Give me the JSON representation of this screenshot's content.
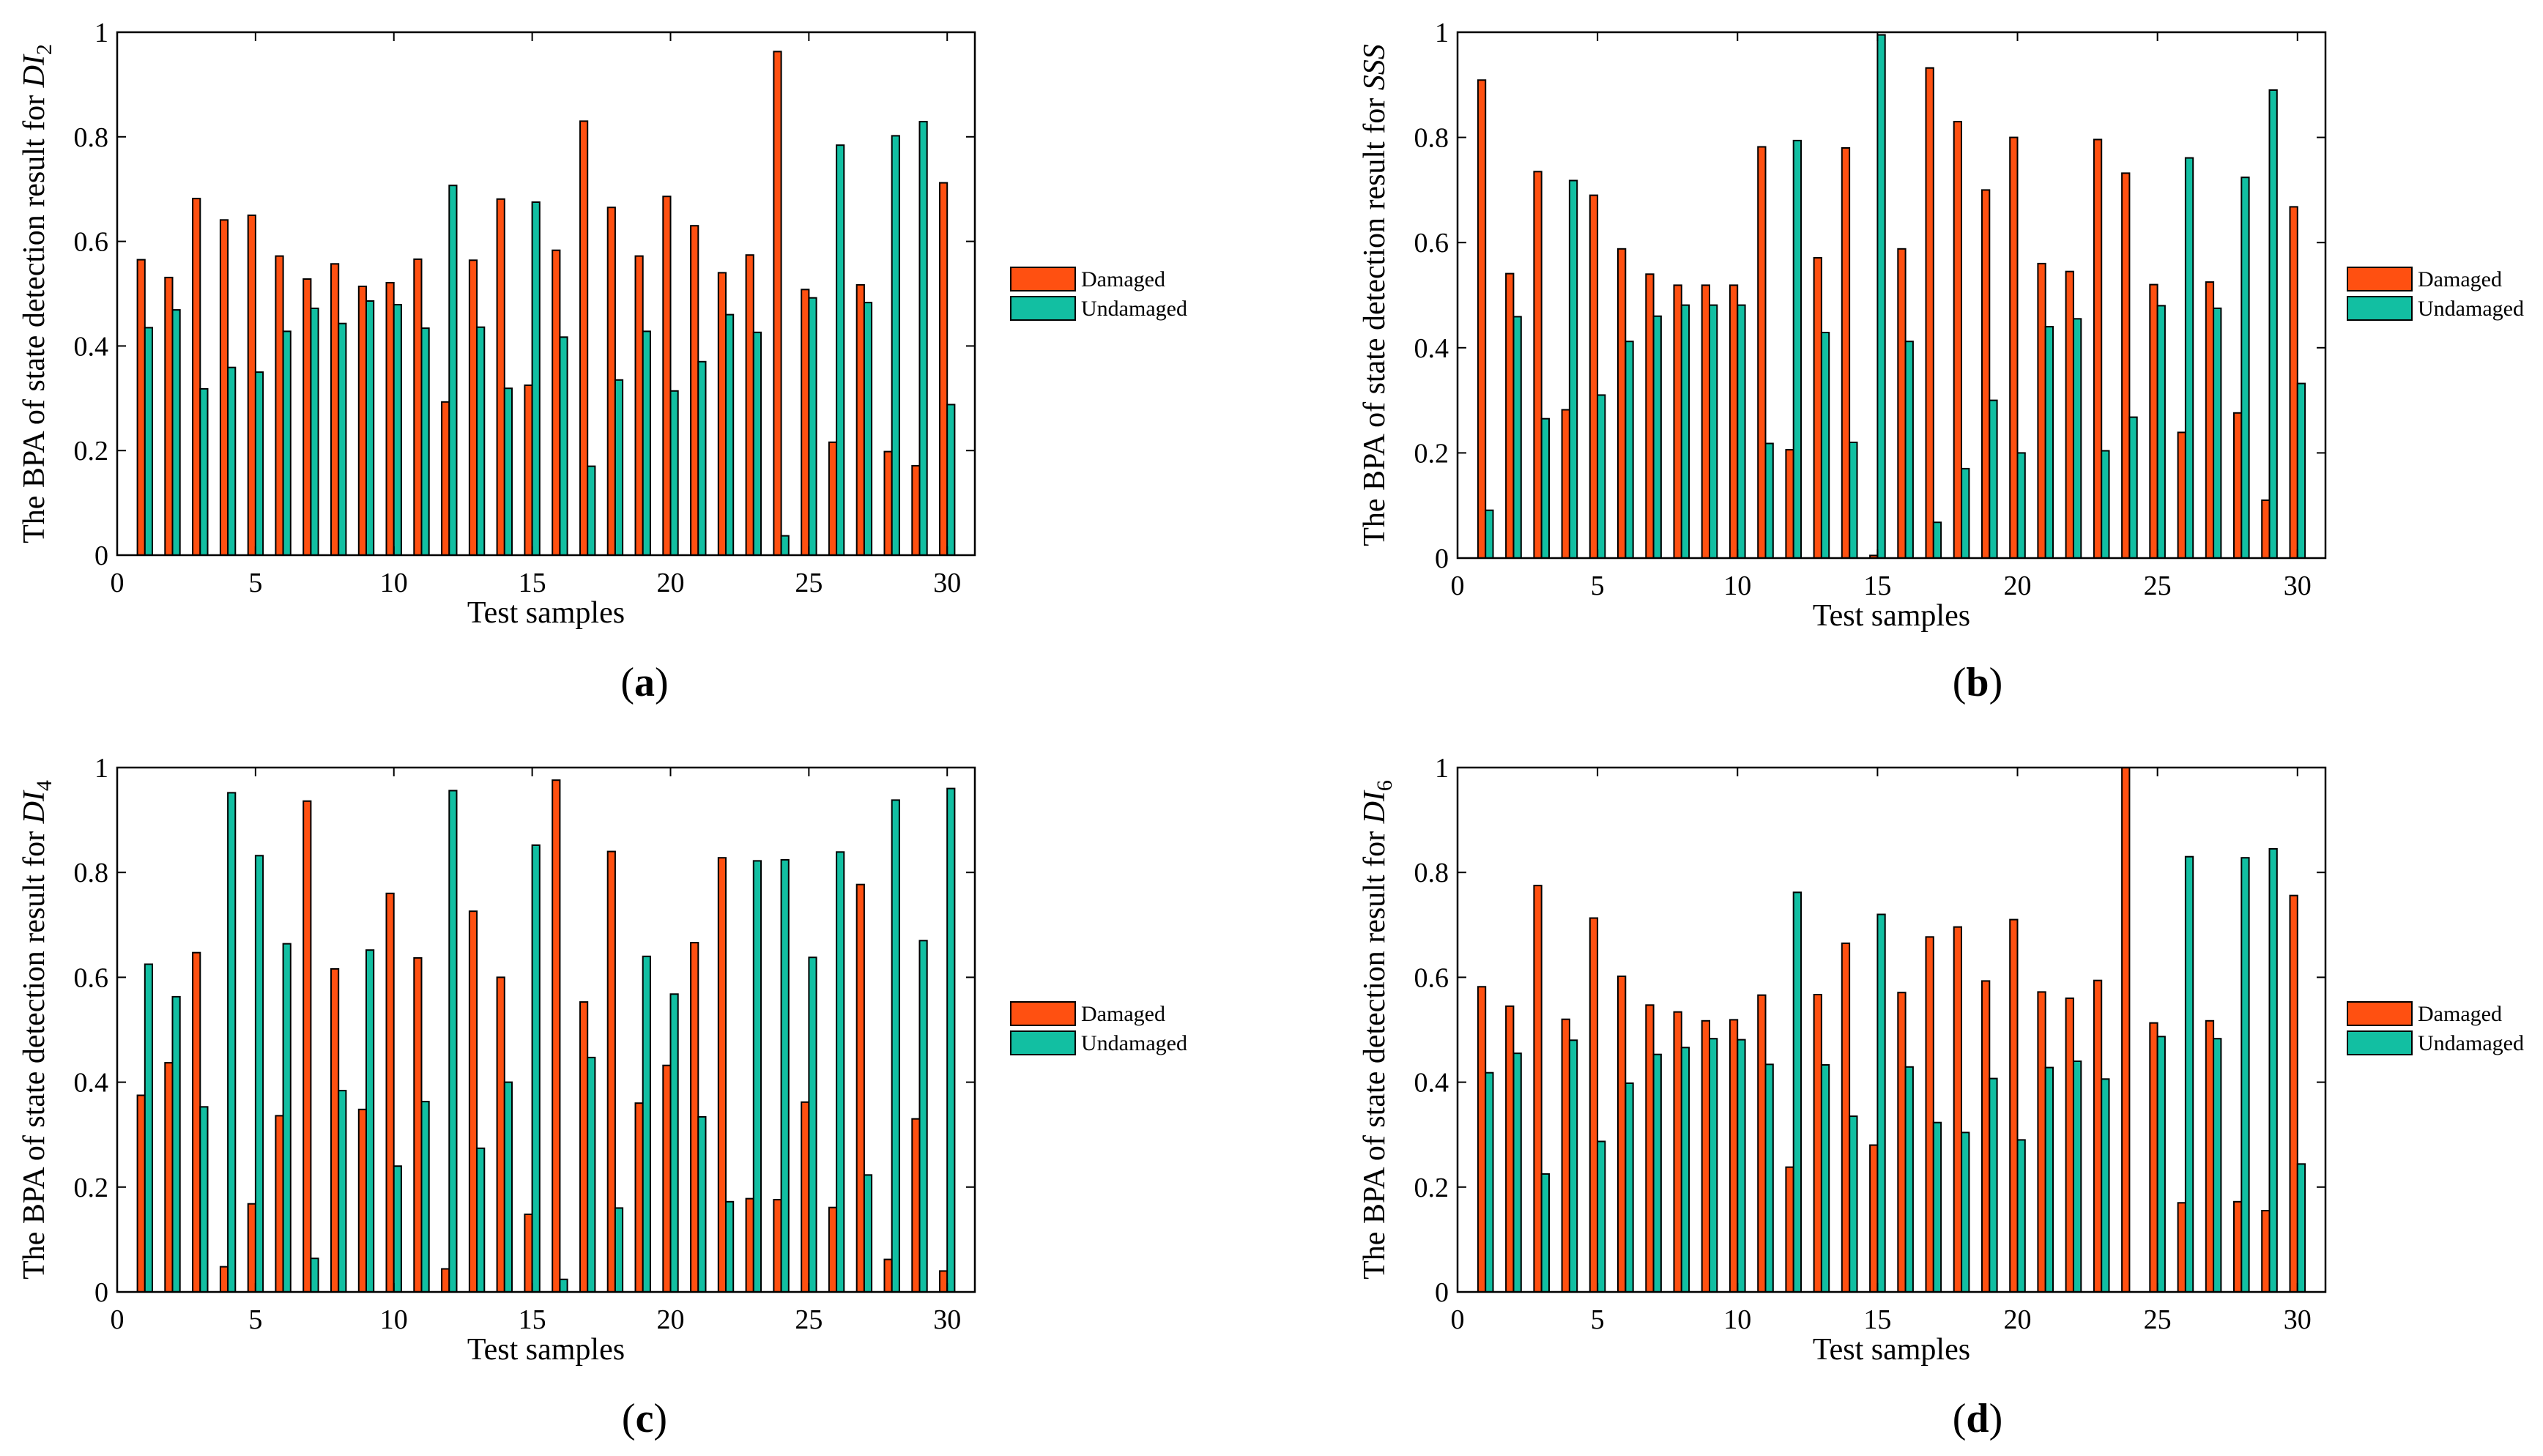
{
  "colors": {
    "damaged": "#FF5011",
    "undamaged": "#12BFA2",
    "edge": "#000000"
  },
  "chart_data": [
    {
      "type": "bar",
      "panel": "(a)",
      "caption_letter": "a",
      "ylabel_prefix": "The BPA of state detection result for ",
      "ylabel_var": "DI",
      "ylabel_sub": "2",
      "xlabel": "Test samples",
      "x_ticks": [
        "0",
        "5",
        "10",
        "15",
        "20",
        "25",
        "30"
      ],
      "y_ticks": [
        "0",
        "0.2",
        "0.4",
        "0.6",
        "0.8",
        "1"
      ],
      "xlim": [
        0,
        31
      ],
      "ylim": [
        0,
        1
      ],
      "legend": [
        "Damaged",
        "Undamaged"
      ],
      "categories": [
        1,
        2,
        3,
        4,
        5,
        6,
        7,
        8,
        9,
        10,
        11,
        12,
        13,
        14,
        15,
        16,
        17,
        18,
        19,
        20,
        21,
        22,
        23,
        24,
        25,
        26,
        27,
        28,
        29,
        30
      ],
      "series": [
        {
          "name": "Damaged",
          "values": [
            0.565,
            0.531,
            0.682,
            0.641,
            0.65,
            0.572,
            0.528,
            0.557,
            0.514,
            0.521,
            0.566,
            0.293,
            0.564,
            0.681,
            0.325,
            0.583,
            0.83,
            0.665,
            0.572,
            0.686,
            0.63,
            0.54,
            0.574,
            0.963,
            0.508,
            0.216,
            0.517,
            0.198,
            0.171,
            0.712
          ]
        },
        {
          "name": "Undamaged",
          "values": [
            0.435,
            0.469,
            0.318,
            0.359,
            0.35,
            0.428,
            0.472,
            0.443,
            0.486,
            0.479,
            0.434,
            0.707,
            0.436,
            0.319,
            0.675,
            0.417,
            0.17,
            0.335,
            0.428,
            0.314,
            0.37,
            0.46,
            0.426,
            0.037,
            0.492,
            0.784,
            0.483,
            0.802,
            0.829,
            0.288
          ]
        }
      ]
    },
    {
      "type": "bar",
      "panel": "(b)",
      "caption_letter": "b",
      "ylabel_prefix": "The BPA of state detection result for ",
      "ylabel_var": "SSS",
      "ylabel_sub": "",
      "xlabel": "Test samples",
      "x_ticks": [
        "0",
        "5",
        "10",
        "15",
        "20",
        "25",
        "30"
      ],
      "y_ticks": [
        "0",
        "0.2",
        "0.4",
        "0.6",
        "0.8",
        "1"
      ],
      "xlim": [
        0,
        31
      ],
      "ylim": [
        0,
        1
      ],
      "legend": [
        "Damaged",
        "Undamaged"
      ],
      "categories": [
        1,
        2,
        3,
        4,
        5,
        6,
        7,
        8,
        9,
        10,
        11,
        12,
        13,
        14,
        15,
        16,
        17,
        18,
        19,
        20,
        21,
        22,
        23,
        24,
        25,
        26,
        27,
        28,
        29,
        30
      ],
      "series": [
        {
          "name": "Damaged",
          "values": [
            0.909,
            0.541,
            0.735,
            0.282,
            0.69,
            0.588,
            0.54,
            0.519,
            0.519,
            0.519,
            0.782,
            0.206,
            0.571,
            0.78,
            0.005,
            0.588,
            0.932,
            0.83,
            0.7,
            0.8,
            0.56,
            0.545,
            0.796,
            0.732,
            0.52,
            0.239,
            0.525,
            0.276,
            0.11,
            0.668
          ]
        },
        {
          "name": "Undamaged",
          "values": [
            0.091,
            0.459,
            0.265,
            0.718,
            0.31,
            0.412,
            0.46,
            0.481,
            0.481,
            0.481,
            0.218,
            0.794,
            0.429,
            0.22,
            0.995,
            0.412,
            0.068,
            0.17,
            0.3,
            0.2,
            0.44,
            0.455,
            0.204,
            0.268,
            0.48,
            0.761,
            0.475,
            0.724,
            0.89,
            0.332
          ]
        }
      ]
    },
    {
      "type": "bar",
      "panel": "(c)",
      "caption_letter": "c",
      "ylabel_prefix": "The BPA of state detection result for ",
      "ylabel_var": "DI",
      "ylabel_sub": "4",
      "xlabel": "Test samples",
      "x_ticks": [
        "0",
        "5",
        "10",
        "15",
        "20",
        "25",
        "30"
      ],
      "y_ticks": [
        "0",
        "0.2",
        "0.4",
        "0.6",
        "0.8",
        "1"
      ],
      "xlim": [
        0,
        31
      ],
      "ylim": [
        0,
        1
      ],
      "legend": [
        "Damaged",
        "Undamaged"
      ],
      "categories": [
        1,
        2,
        3,
        4,
        5,
        6,
        7,
        8,
        9,
        10,
        11,
        12,
        13,
        14,
        15,
        16,
        17,
        18,
        19,
        20,
        21,
        22,
        23,
        24,
        25,
        26,
        27,
        28,
        29,
        30
      ],
      "series": [
        {
          "name": "Damaged",
          "values": [
            0.375,
            0.437,
            0.647,
            0.048,
            0.168,
            0.336,
            0.936,
            0.616,
            0.348,
            0.76,
            0.637,
            0.044,
            0.726,
            0.6,
            0.148,
            0.976,
            0.553,
            0.84,
            0.36,
            0.432,
            0.666,
            0.828,
            0.178,
            0.176,
            0.362,
            0.161,
            0.777,
            0.062,
            0.33,
            0.04
          ]
        },
        {
          "name": "Undamaged",
          "values": [
            0.625,
            0.563,
            0.353,
            0.952,
            0.832,
            0.664,
            0.064,
            0.384,
            0.652,
            0.24,
            0.363,
            0.956,
            0.274,
            0.4,
            0.852,
            0.024,
            0.447,
            0.16,
            0.64,
            0.568,
            0.334,
            0.172,
            0.822,
            0.824,
            0.638,
            0.839,
            0.223,
            0.938,
            0.67,
            0.96
          ]
        }
      ]
    },
    {
      "type": "bar",
      "panel": "(d)",
      "caption_letter": "d",
      "ylabel_prefix": "The BPA of state detection result for ",
      "ylabel_var": "DI",
      "ylabel_sub": "6",
      "xlabel": "Test samples",
      "x_ticks": [
        "0",
        "5",
        "10",
        "15",
        "20",
        "25",
        "30"
      ],
      "y_ticks": [
        "0",
        "0.2",
        "0.4",
        "0.6",
        "0.8",
        "1"
      ],
      "xlim": [
        0,
        31
      ],
      "ylim": [
        0,
        1
      ],
      "legend": [
        "Damaged",
        "Undamaged"
      ],
      "categories": [
        1,
        2,
        3,
        4,
        5,
        6,
        7,
        8,
        9,
        10,
        11,
        12,
        13,
        14,
        15,
        16,
        17,
        18,
        19,
        20,
        21,
        22,
        23,
        24,
        25,
        26,
        27,
        28,
        29,
        30
      ],
      "series": [
        {
          "name": "Damaged",
          "values": [
            0.582,
            0.545,
            0.775,
            0.52,
            0.713,
            0.602,
            0.547,
            0.534,
            0.517,
            0.519,
            0.566,
            0.238,
            0.567,
            0.665,
            0.28,
            0.571,
            0.677,
            0.696,
            0.593,
            0.71,
            0.572,
            0.56,
            0.594,
            1.0,
            0.513,
            0.17,
            0.517,
            0.172,
            0.155,
            0.756
          ]
        },
        {
          "name": "Undamaged",
          "values": [
            0.418,
            0.455,
            0.225,
            0.48,
            0.287,
            0.398,
            0.453,
            0.466,
            0.483,
            0.481,
            0.434,
            0.762,
            0.433,
            0.335,
            0.72,
            0.429,
            0.323,
            0.304,
            0.407,
            0.29,
            0.428,
            0.44,
            0.406,
            0.0,
            0.487,
            0.83,
            0.483,
            0.828,
            0.845,
            0.244
          ]
        }
      ]
    }
  ]
}
